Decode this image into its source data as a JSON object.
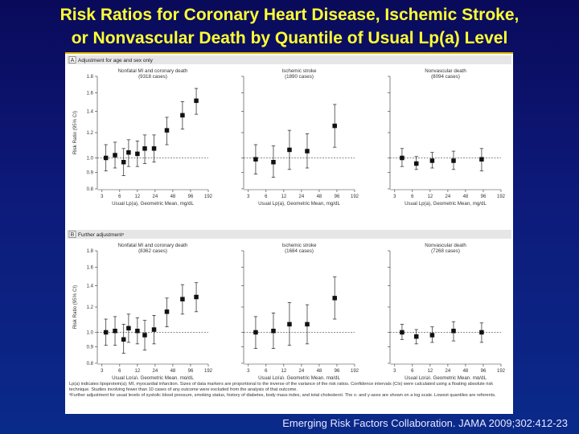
{
  "slide": {
    "title_line1": "Risk Ratios for Coronary Heart Disease, Ischemic Stroke,",
    "title_line2": "or Nonvascular Death by Quantile of Usual Lp(a) Level",
    "citation": "Emerging Risk Factors Collaboration. JAMA 2009;302:412-23"
  },
  "figure": {
    "footnote1": "Lp(a) indicates lipoprotein(a); MI, myocardial infarction. Sizes of data markers are proportional to the inverse of the variance of the risk ratios. Confidence intervals (CIs) were calculated using a floating absolute risk technique. Studies involving fewer than 10 cases of any outcome were excluded from the analysis of that outcome.",
    "footnote2": "ᵃFurther adjustment for usual levels of systolic blood pressure, smoking status, history of diabetes, body mass index, and total cholesterol. The x- and y-axes are shown on a log scale. Lowest quantiles are referents."
  },
  "chart_data": {
    "type": "scatter",
    "ylabel": "Risk Ratio (95% CI)",
    "xlabel": "Usual Lp(a), Geometric Mean, mg/dL",
    "x_scale": "log",
    "y_scale": "log",
    "xlim": [
      2.5,
      192
    ],
    "ylim": [
      0.8,
      1.8
    ],
    "x_ticks": [
      3,
      6,
      12,
      24,
      48,
      96,
      192
    ],
    "y_ticks": [
      0.8,
      0.9,
      1.0,
      1.2,
      1.4,
      1.6,
      1.8
    ],
    "reference_line": 1.0,
    "sections": [
      {
        "letter": "A",
        "label": "Adjustment for age and sex only",
        "panels": [
          {
            "title": "Nonfatal MI and coronary death",
            "cases": "(9318 cases)",
            "points": [
              {
                "x": 3.5,
                "y": 1.0,
                "lo": 0.91,
                "hi": 1.1
              },
              {
                "x": 5,
                "y": 1.02,
                "lo": 0.93,
                "hi": 1.12
              },
              {
                "x": 7,
                "y": 0.97,
                "lo": 0.88,
                "hi": 1.07
              },
              {
                "x": 8.5,
                "y": 1.04,
                "lo": 0.94,
                "hi": 1.14
              },
              {
                "x": 12,
                "y": 1.03,
                "lo": 0.94,
                "hi": 1.13
              },
              {
                "x": 16,
                "y": 1.07,
                "lo": 0.96,
                "hi": 1.18
              },
              {
                "x": 23,
                "y": 1.07,
                "lo": 0.97,
                "hi": 1.18
              },
              {
                "x": 38,
                "y": 1.22,
                "lo": 1.1,
                "hi": 1.34
              },
              {
                "x": 70,
                "y": 1.36,
                "lo": 1.23,
                "hi": 1.5
              },
              {
                "x": 120,
                "y": 1.51,
                "lo": 1.37,
                "hi": 1.65
              }
            ]
          },
          {
            "title": "Ischemic stroke",
            "cases": "(1890 cases)",
            "points": [
              {
                "x": 4,
                "y": 0.99,
                "lo": 0.89,
                "hi": 1.1
              },
              {
                "x": 8,
                "y": 0.97,
                "lo": 0.87,
                "hi": 1.09
              },
              {
                "x": 15,
                "y": 1.06,
                "lo": 0.92,
                "hi": 1.22
              },
              {
                "x": 30,
                "y": 1.05,
                "lo": 0.93,
                "hi": 1.19
              },
              {
                "x": 88,
                "y": 1.26,
                "lo": 1.08,
                "hi": 1.47
              }
            ]
          },
          {
            "title": "Nonvascular death",
            "cases": "(8094 cases)",
            "points": [
              {
                "x": 4,
                "y": 1.0,
                "lo": 0.94,
                "hi": 1.07
              },
              {
                "x": 7,
                "y": 0.96,
                "lo": 0.92,
                "hi": 1.01
              },
              {
                "x": 13,
                "y": 0.98,
                "lo": 0.93,
                "hi": 1.04
              },
              {
                "x": 30,
                "y": 0.98,
                "lo": 0.92,
                "hi": 1.05
              },
              {
                "x": 90,
                "y": 0.99,
                "lo": 0.91,
                "hi": 1.07
              }
            ]
          }
        ]
      },
      {
        "letter": "B",
        "label": "Further adjustmentᵃ",
        "panels": [
          {
            "title": "Nonfatal MI and coronary death",
            "cases": "(8362 cases)",
            "points": [
              {
                "x": 3.5,
                "y": 1.0,
                "lo": 0.91,
                "hi": 1.1
              },
              {
                "x": 5,
                "y": 1.01,
                "lo": 0.91,
                "hi": 1.12
              },
              {
                "x": 7,
                "y": 0.95,
                "lo": 0.86,
                "hi": 1.06
              },
              {
                "x": 8.5,
                "y": 1.03,
                "lo": 0.93,
                "hi": 1.14
              },
              {
                "x": 12,
                "y": 1.01,
                "lo": 0.92,
                "hi": 1.11
              },
              {
                "x": 16,
                "y": 0.98,
                "lo": 0.88,
                "hi": 1.09
              },
              {
                "x": 23,
                "y": 1.02,
                "lo": 0.92,
                "hi": 1.13
              },
              {
                "x": 38,
                "y": 1.16,
                "lo": 1.04,
                "hi": 1.28
              },
              {
                "x": 70,
                "y": 1.27,
                "lo": 1.14,
                "hi": 1.41
              },
              {
                "x": 120,
                "y": 1.29,
                "lo": 1.16,
                "hi": 1.43
              }
            ]
          },
          {
            "title": "Ischemic stroke",
            "cases": "(1684 cases)",
            "points": [
              {
                "x": 4,
                "y": 1.0,
                "lo": 0.89,
                "hi": 1.12
              },
              {
                "x": 8,
                "y": 1.01,
                "lo": 0.89,
                "hi": 1.15
              },
              {
                "x": 15,
                "y": 1.06,
                "lo": 0.91,
                "hi": 1.24
              },
              {
                "x": 30,
                "y": 1.06,
                "lo": 0.92,
                "hi": 1.22
              },
              {
                "x": 88,
                "y": 1.28,
                "lo": 1.1,
                "hi": 1.49
              }
            ]
          },
          {
            "title": "Nonvascular death",
            "cases": "(7268 cases)",
            "points": [
              {
                "x": 4,
                "y": 1.0,
                "lo": 0.95,
                "hi": 1.06
              },
              {
                "x": 7,
                "y": 0.97,
                "lo": 0.92,
                "hi": 1.02
              },
              {
                "x": 13,
                "y": 0.98,
                "lo": 0.93,
                "hi": 1.04
              },
              {
                "x": 30,
                "y": 1.01,
                "lo": 0.94,
                "hi": 1.08
              },
              {
                "x": 90,
                "y": 1.0,
                "lo": 0.93,
                "hi": 1.07
              }
            ]
          }
        ]
      }
    ]
  }
}
